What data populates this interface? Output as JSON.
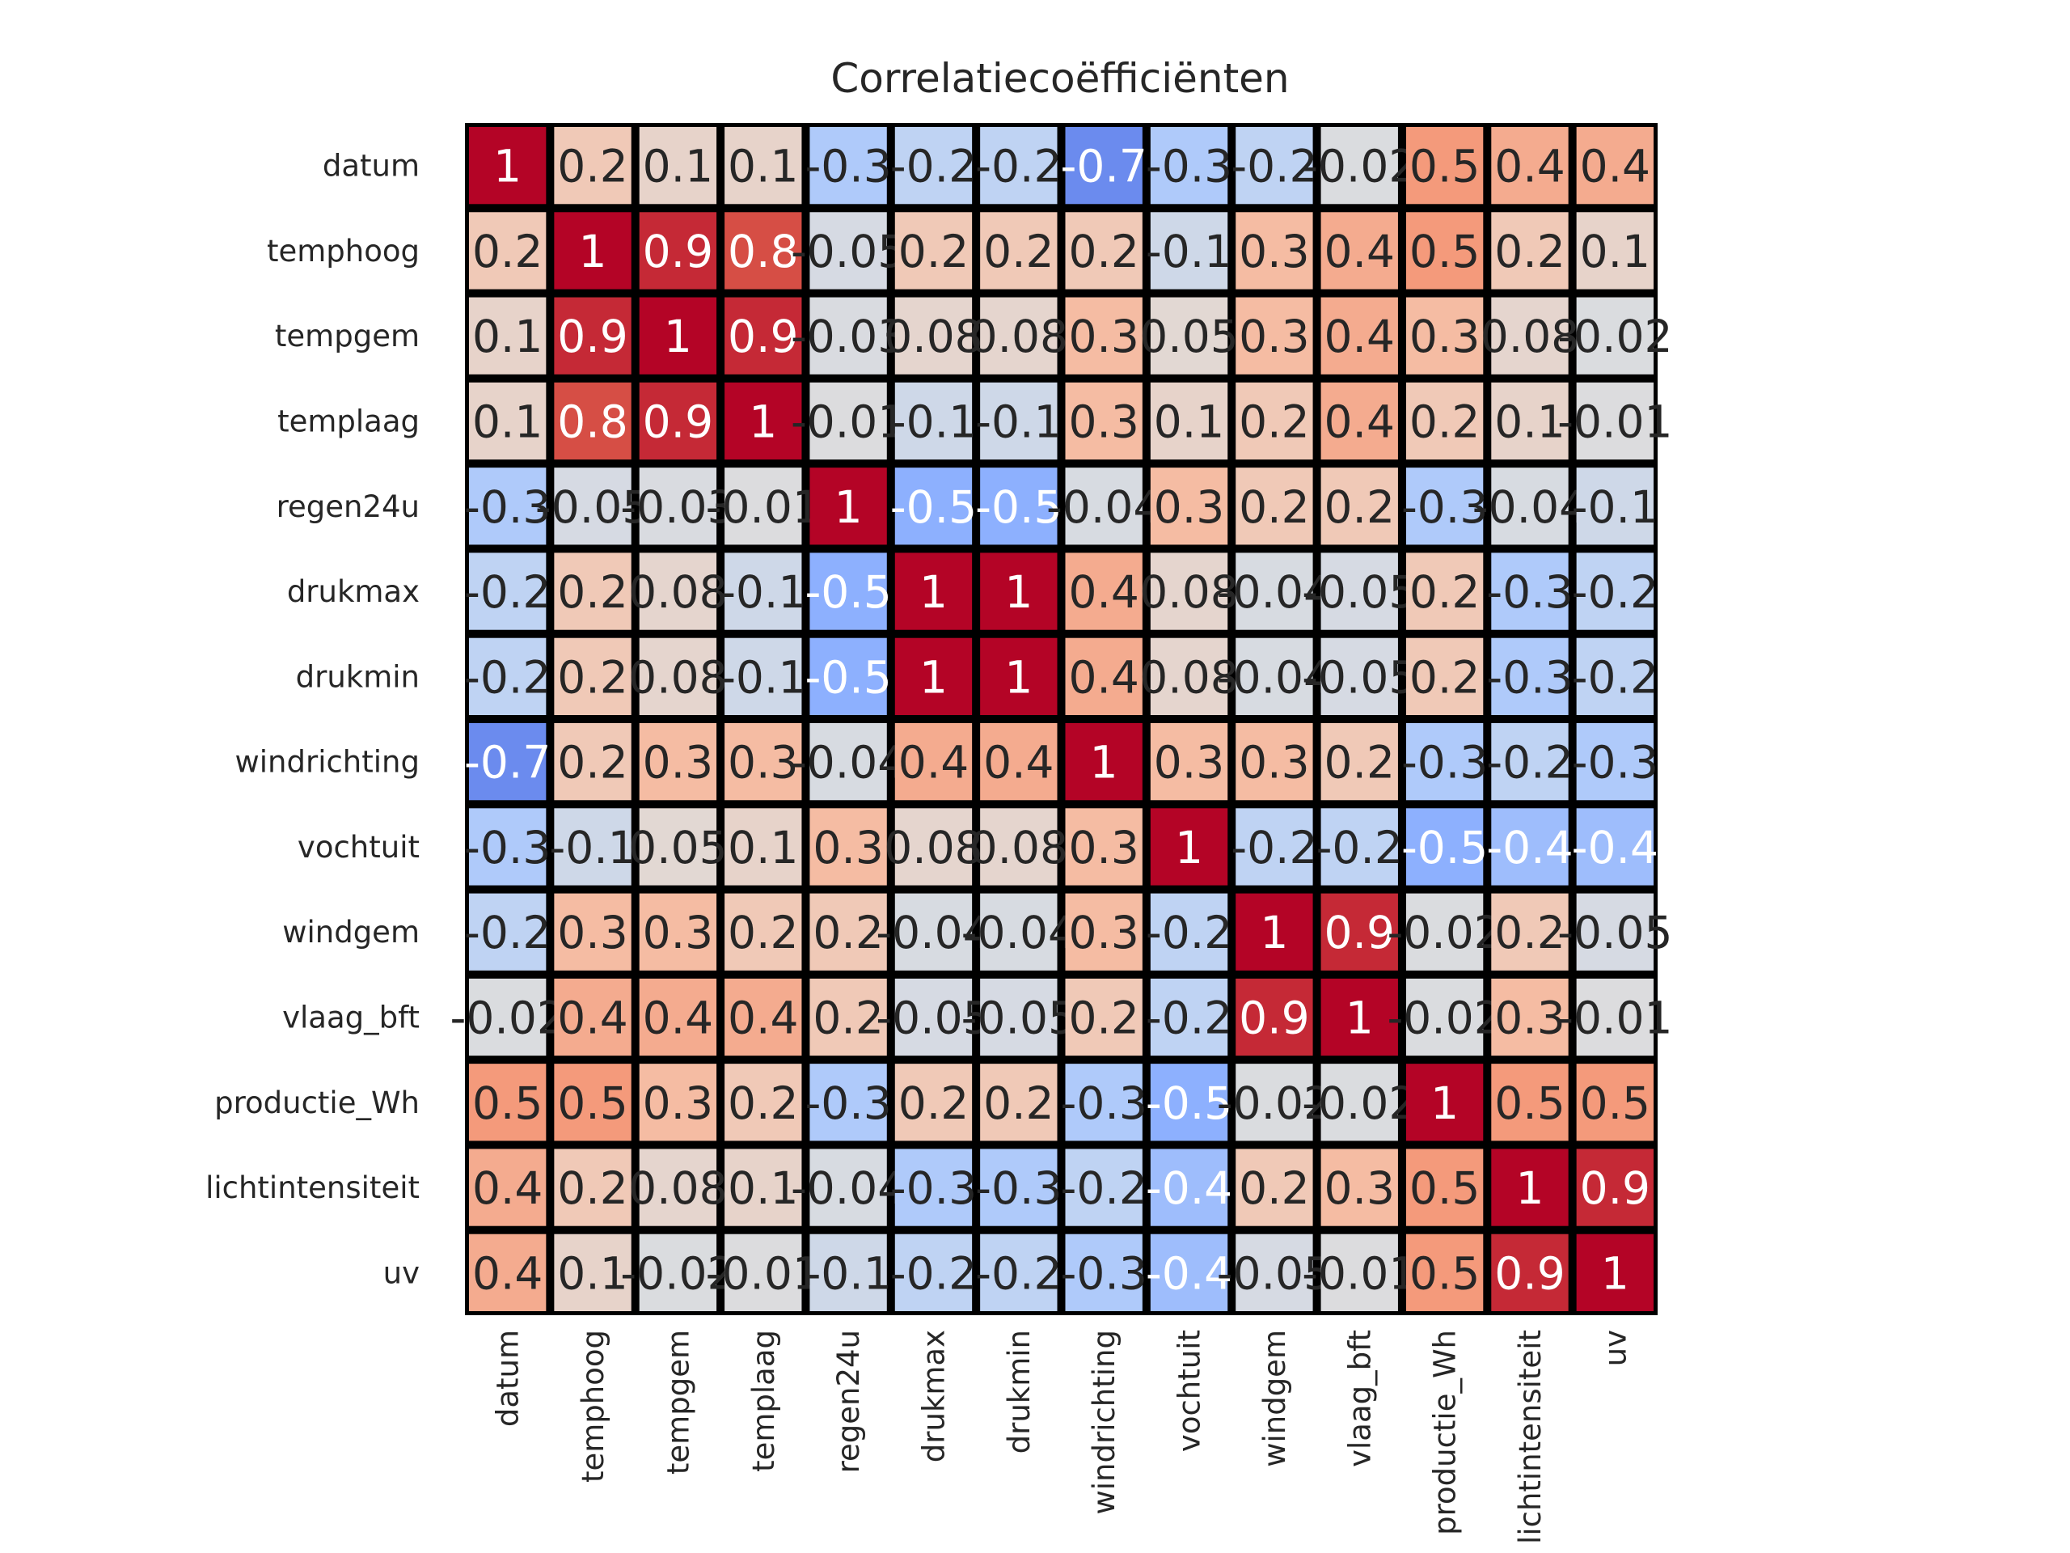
{
  "chart_data": {
    "type": "heatmap",
    "title": "Correlatiecoëfficiënten",
    "xlabel": "",
    "ylabel": "",
    "colormap": "coolwarm",
    "vmin": -1,
    "vmax": 1,
    "labels": [
      "datum",
      "temphoog",
      "tempgem",
      "templaag",
      "regen24u",
      "drukmax",
      "drukmin",
      "windrichting",
      "vochtuit",
      "windgem",
      "vlaag_bft",
      "productie_Wh",
      "lichtintensiteit",
      "uv"
    ],
    "matrix": [
      [
        1,
        0.2,
        0.1,
        0.1,
        -0.3,
        -0.2,
        -0.2,
        -0.7,
        -0.3,
        -0.2,
        -0.02,
        0.5,
        0.4,
        0.4
      ],
      [
        0.2,
        1,
        0.9,
        0.8,
        -0.05,
        0.2,
        0.2,
        0.2,
        -0.1,
        0.3,
        0.4,
        0.5,
        0.2,
        0.1
      ],
      [
        0.1,
        0.9,
        1,
        0.9,
        -0.03,
        0.08,
        0.08,
        0.3,
        0.05,
        0.3,
        0.4,
        0.3,
        0.08,
        -0.02
      ],
      [
        0.1,
        0.8,
        0.9,
        1,
        -0.01,
        -0.1,
        -0.1,
        0.3,
        0.1,
        0.2,
        0.4,
        0.2,
        0.1,
        -0.01
      ],
      [
        -0.3,
        -0.05,
        -0.03,
        -0.01,
        1,
        -0.5,
        -0.5,
        -0.04,
        0.3,
        0.2,
        0.2,
        -0.3,
        -0.04,
        -0.1
      ],
      [
        -0.2,
        0.2,
        0.08,
        -0.1,
        -0.5,
        1,
        1,
        0.4,
        0.08,
        -0.04,
        -0.05,
        0.2,
        -0.3,
        -0.2
      ],
      [
        -0.2,
        0.2,
        0.08,
        -0.1,
        -0.5,
        1,
        1,
        0.4,
        0.08,
        -0.04,
        -0.05,
        0.2,
        -0.3,
        -0.2
      ],
      [
        -0.7,
        0.2,
        0.3,
        0.3,
        -0.04,
        0.4,
        0.4,
        1,
        0.3,
        0.3,
        0.2,
        -0.3,
        -0.2,
        -0.3
      ],
      [
        -0.3,
        -0.1,
        0.05,
        0.1,
        0.3,
        0.08,
        0.08,
        0.3,
        1,
        -0.2,
        -0.2,
        -0.5,
        -0.4,
        -0.4
      ],
      [
        -0.2,
        0.3,
        0.3,
        0.2,
        0.2,
        -0.04,
        -0.04,
        0.3,
        -0.2,
        1,
        0.9,
        -0.02,
        0.2,
        -0.05
      ],
      [
        -0.02,
        0.4,
        0.4,
        0.4,
        0.2,
        -0.05,
        -0.05,
        0.2,
        -0.2,
        0.9,
        1,
        -0.02,
        0.3,
        -0.01
      ],
      [
        0.5,
        0.5,
        0.3,
        0.2,
        -0.3,
        0.2,
        0.2,
        -0.3,
        -0.5,
        -0.02,
        -0.02,
        1,
        0.5,
        0.5
      ],
      [
        0.4,
        0.2,
        0.08,
        0.1,
        -0.04,
        -0.3,
        -0.3,
        -0.2,
        -0.4,
        0.2,
        0.3,
        0.5,
        1,
        0.9
      ],
      [
        0.4,
        0.1,
        -0.02,
        -0.01,
        -0.1,
        -0.2,
        -0.2,
        -0.3,
        -0.4,
        -0.05,
        -0.01,
        0.5,
        0.9,
        1
      ]
    ]
  }
}
